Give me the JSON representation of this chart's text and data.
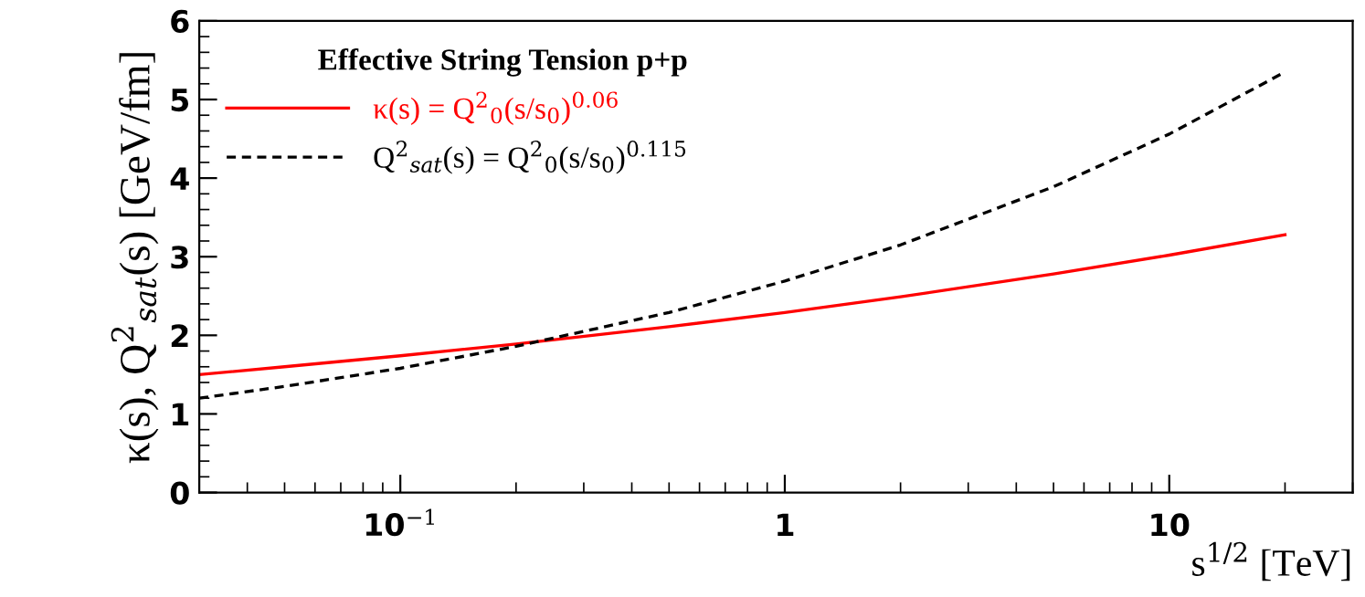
{
  "chart_data": {
    "type": "line",
    "legend_title": "Effective String Tension p+p",
    "xlabel": "s$^{1/2}$ [TeV]",
    "ylabel": "κ(s), Q$^{2}$$_{sat}$(s) [GeV/fm]",
    "log": "x",
    "xlim": [
      0.03,
      30
    ],
    "xticks": [
      {
        "value": 0.1,
        "label": "10$^{−1}$"
      },
      1,
      10
    ],
    "ylim": [
      0,
      6
    ],
    "yticks": [
      0,
      1,
      2,
      3,
      4,
      5,
      6
    ],
    "grid": false,
    "legend": "top left",
    "series": [
      {
        "name": "κ(s) = Q$^{2}$$_{0}$(s/s$_{0}$)$^{0.06}$",
        "color": "#ff0000",
        "line_style": "solid",
        "x": [
          0.03,
          0.05,
          0.1,
          0.2,
          0.5,
          1,
          2,
          5,
          10,
          20
        ],
        "values": [
          1.5,
          1.6,
          1.74,
          1.89,
          2.11,
          2.29,
          2.49,
          2.78,
          3.02,
          3.28
        ]
      },
      {
        "name": "Q$^{2}$$_{sat}$(s) = Q$^{2}$$_{0}$(s/s$_{0}$)$^{0.115}$",
        "color": "#000000",
        "line_style": "dashed",
        "x": [
          0.03,
          0.05,
          0.1,
          0.2,
          0.5,
          1,
          2,
          5,
          10,
          20
        ],
        "values": [
          1.2,
          1.35,
          1.58,
          1.86,
          2.29,
          2.69,
          3.15,
          3.89,
          4.56,
          5.35
        ]
      }
    ]
  }
}
